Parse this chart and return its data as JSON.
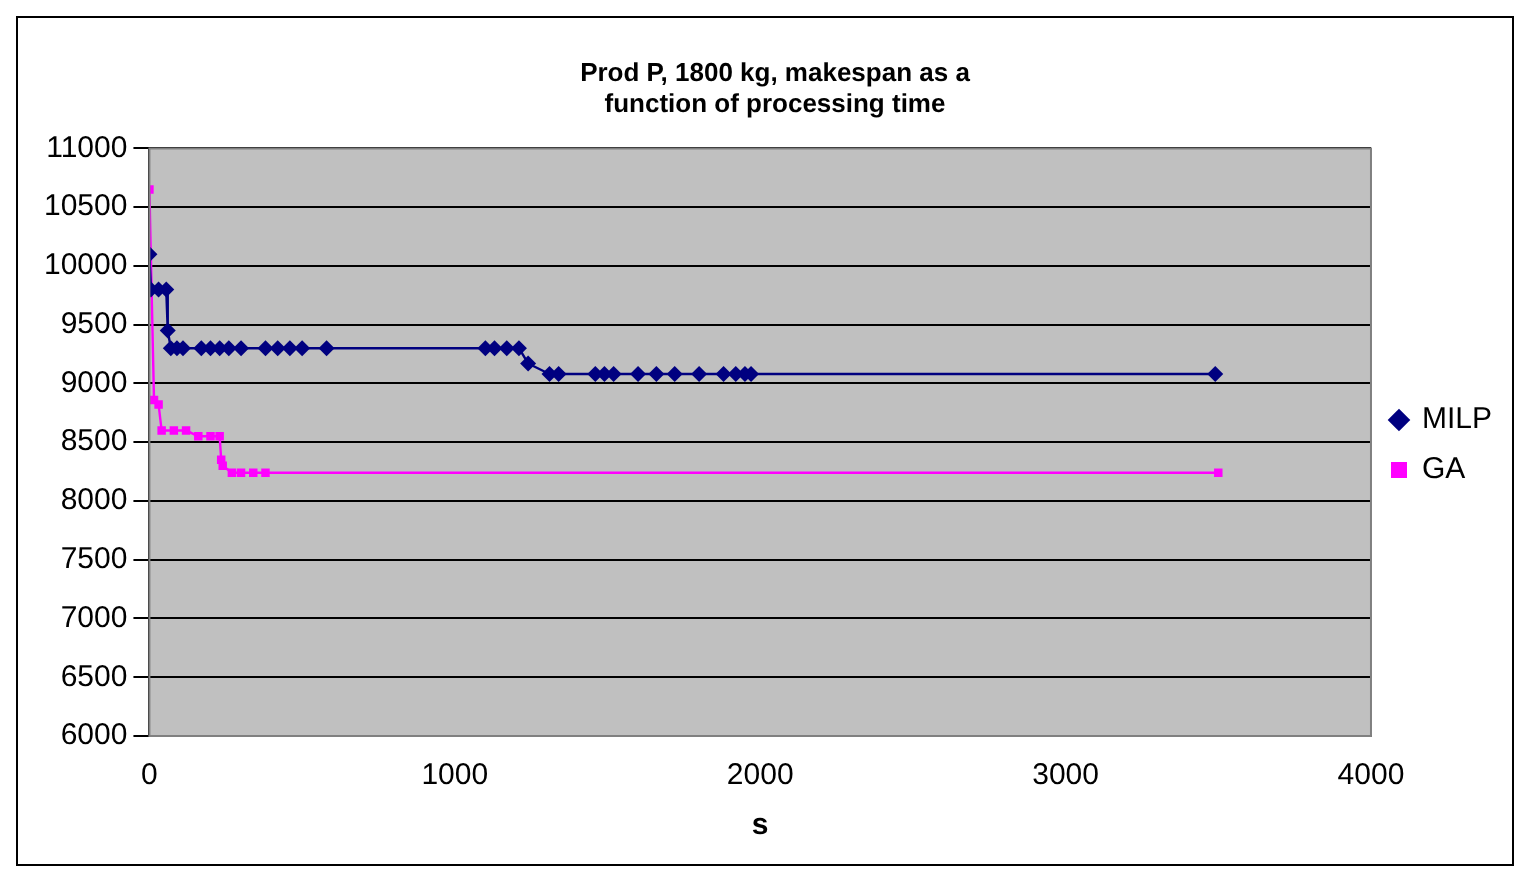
{
  "chart_data": {
    "type": "line",
    "title": "Prod P, 1800 kg, makespan as a function of processing time",
    "xlabel": "s",
    "xlim": [
      0,
      4000
    ],
    "xticks": [
      0,
      1000,
      2000,
      3000,
      4000
    ],
    "ylim": [
      6000,
      11000
    ],
    "yticks": [
      6000,
      6500,
      7000,
      7500,
      8000,
      8500,
      9000,
      9500,
      10000,
      10500,
      11000
    ],
    "grid": "y",
    "legend": "right",
    "line_style": "solid",
    "series": [
      {
        "name": "MILP",
        "color": "#000080",
        "marker": "diamond",
        "x": [
          0,
          5,
          30,
          55,
          60,
          70,
          90,
          110,
          170,
          200,
          230,
          260,
          300,
          380,
          420,
          460,
          500,
          580,
          1100,
          1130,
          1170,
          1210,
          1240,
          1310,
          1340,
          1460,
          1490,
          1520,
          1600,
          1660,
          1720,
          1800,
          1880,
          1920,
          1950,
          1970,
          3490
        ],
        "values": [
          10100,
          9800,
          9800,
          9800,
          9450,
          9300,
          9300,
          9300,
          9300,
          9300,
          9300,
          9300,
          9300,
          9300,
          9300,
          9300,
          9300,
          9300,
          9300,
          9300,
          9300,
          9300,
          9170,
          9080,
          9080,
          9080,
          9080,
          9080,
          9080,
          9080,
          9080,
          9080,
          9080,
          9080,
          9080,
          9080,
          9080
        ]
      },
      {
        "name": "GA",
        "color": "#ff00ff",
        "marker": "square",
        "x": [
          0,
          15,
          30,
          40,
          80,
          120,
          160,
          200,
          230,
          235,
          240,
          270,
          300,
          340,
          380,
          3500
        ],
        "values": [
          10650,
          8860,
          8820,
          8600,
          8600,
          8600,
          8550,
          8550,
          8550,
          8350,
          8300,
          8240,
          8240,
          8240,
          8240,
          8240
        ]
      }
    ]
  }
}
